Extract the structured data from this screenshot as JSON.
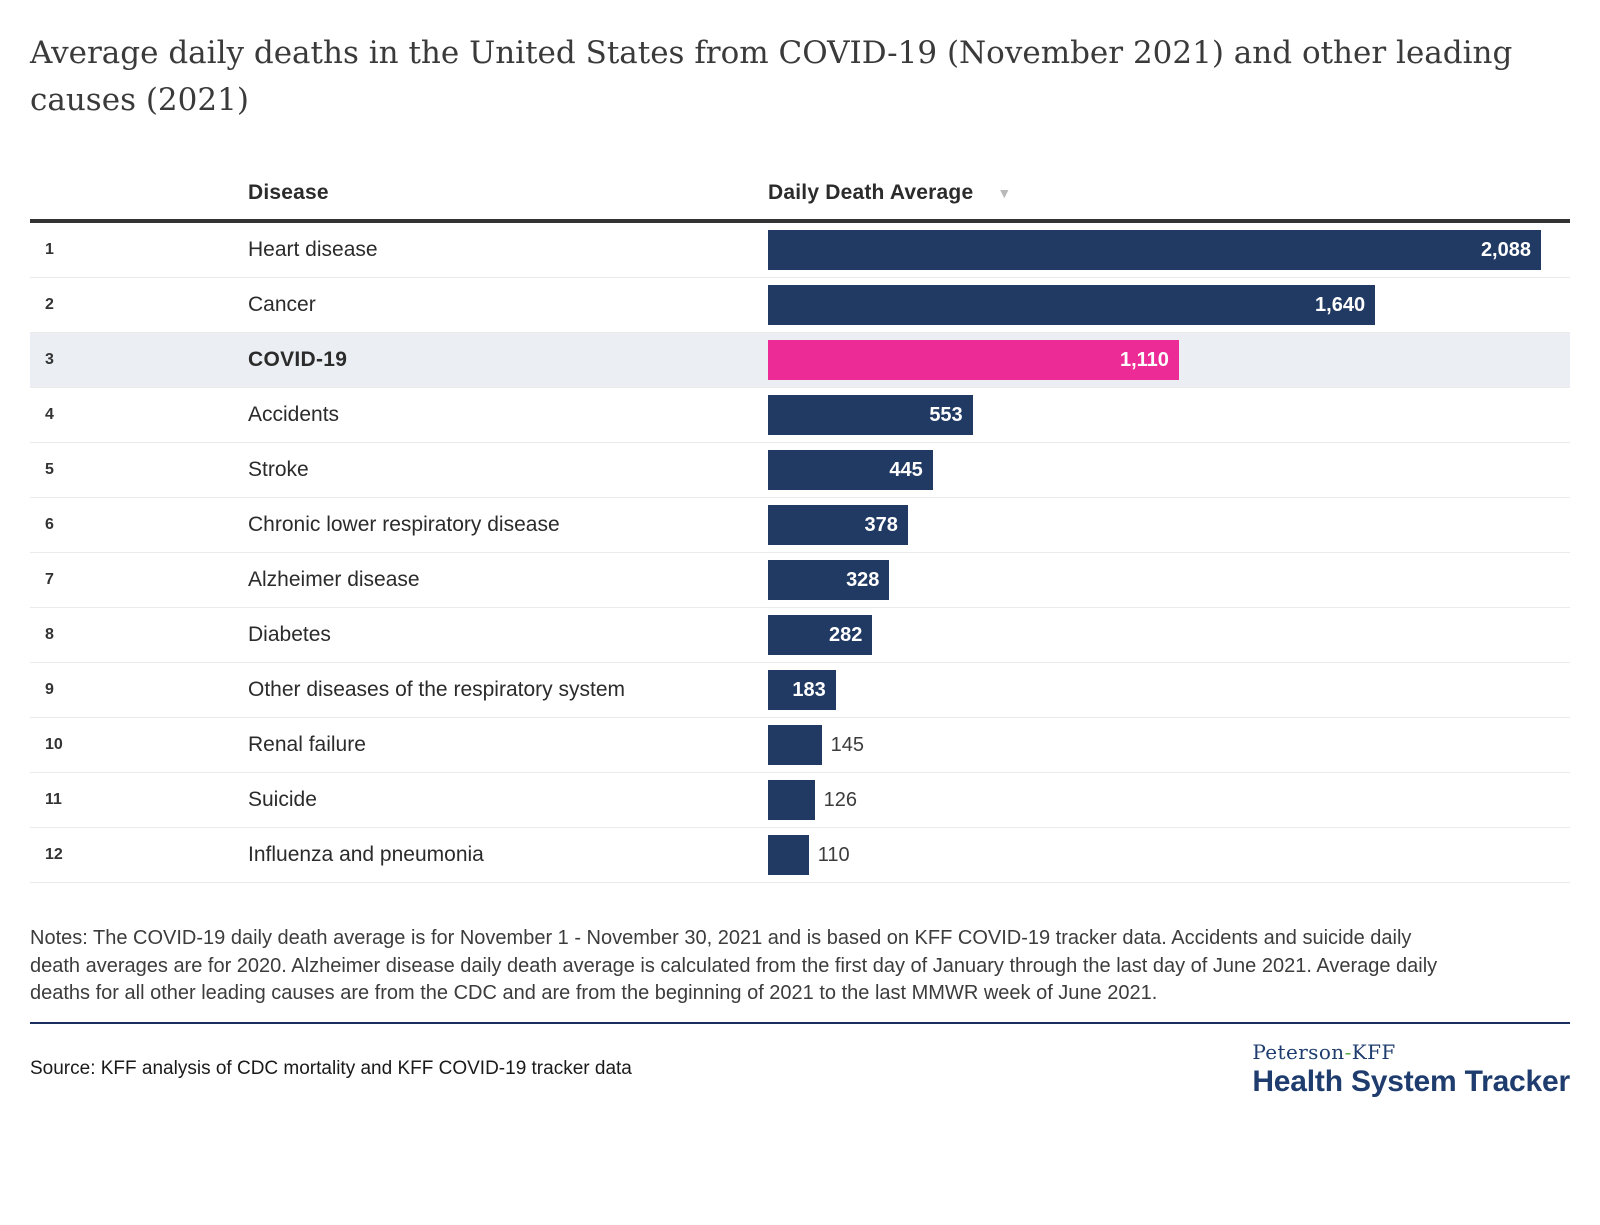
{
  "title": "Average daily deaths in the United States from COVID-19 (November 2021) and other leading causes (2021)",
  "table": {
    "columns": {
      "disease": "Disease",
      "value": "Daily Death Average"
    },
    "sort_icon": "▼"
  },
  "chart_data": {
    "type": "bar",
    "orientation": "horizontal",
    "title": "Average daily deaths in the United States from COVID-19 (November 2021) and other leading causes (2021)",
    "categories": [
      "Heart disease",
      "Cancer",
      "COVID-19",
      "Accidents",
      "Stroke",
      "Chronic lower respiratory disease",
      "Alzheimer disease",
      "Diabetes",
      "Other diseases of the respiratory system",
      "Renal failure",
      "Suicide",
      "Influenza and pneumonia"
    ],
    "values": [
      2088,
      1640,
      1110,
      553,
      445,
      378,
      328,
      282,
      183,
      145,
      126,
      110
    ],
    "value_labels": [
      "2,088",
      "1,640",
      "1,110",
      "553",
      "445",
      "378",
      "328",
      "282",
      "183",
      "145",
      "126",
      "110"
    ],
    "ranks": [
      1,
      2,
      3,
      4,
      5,
      6,
      7,
      8,
      9,
      10,
      11,
      12
    ],
    "highlight_category": "COVID-19",
    "xlabel": "Daily Death Average",
    "ylabel": "Disease",
    "xlim": [
      0,
      2088
    ],
    "grid": false,
    "legend": false,
    "bar_color": "#213a63",
    "highlight_color": "#ed2b96"
  },
  "rows": [
    {
      "rank": "1",
      "disease": "Heart disease",
      "value": 2088,
      "value_label": "2,088",
      "label_position": "inside",
      "highlighted": false
    },
    {
      "rank": "2",
      "disease": "Cancer",
      "value": 1640,
      "value_label": "1,640",
      "label_position": "inside",
      "highlighted": false
    },
    {
      "rank": "3",
      "disease": "COVID-19",
      "value": 1110,
      "value_label": "1,110",
      "label_position": "inside",
      "highlighted": true
    },
    {
      "rank": "4",
      "disease": "Accidents",
      "value": 553,
      "value_label": "553",
      "label_position": "inside",
      "highlighted": false
    },
    {
      "rank": "5",
      "disease": "Stroke",
      "value": 445,
      "value_label": "445",
      "label_position": "inside",
      "highlighted": false
    },
    {
      "rank": "6",
      "disease": "Chronic lower respiratory disease",
      "value": 378,
      "value_label": "378",
      "label_position": "inside",
      "highlighted": false
    },
    {
      "rank": "7",
      "disease": "Alzheimer disease",
      "value": 328,
      "value_label": "328",
      "label_position": "inside",
      "highlighted": false
    },
    {
      "rank": "8",
      "disease": "Diabetes",
      "value": 282,
      "value_label": "282",
      "label_position": "inside",
      "highlighted": false
    },
    {
      "rank": "9",
      "disease": "Other diseases of the respiratory system",
      "value": 183,
      "value_label": "183",
      "label_position": "inside",
      "highlighted": false
    },
    {
      "rank": "10",
      "disease": "Renal failure",
      "value": 145,
      "value_label": "145",
      "label_position": "outside",
      "highlighted": false
    },
    {
      "rank": "11",
      "disease": "Suicide",
      "value": 126,
      "value_label": "126",
      "label_position": "outside",
      "highlighted": false
    },
    {
      "rank": "12",
      "disease": "Influenza and pneumonia",
      "value": 110,
      "value_label": "110",
      "label_position": "outside",
      "highlighted": false
    }
  ],
  "notes": "Notes: The COVID-19 daily death average is for November 1 - November 30, 2021 and is based on KFF COVID-19 tracker data. Accidents and suicide daily death averages are for 2020. Alzheimer disease daily death average is calculated from the first day of January through the last day of June 2021. Average daily deaths for all other leading causes are from the CDC and are from the beginning of 2021 to the last MMWR week of June 2021.",
  "source": "Source: KFF analysis of CDC mortality and KFF COVID-19 tracker data",
  "logo": {
    "top_left": "Peterson",
    "hyphen": "-",
    "top_right": "KFF",
    "bottom": "Health System Tracker"
  },
  "colors": {
    "bar_navy": "#213a63",
    "bar_pink": "#ed2b96",
    "row_highlight_bg": "#ebeff3",
    "header_rule": "#333333",
    "row_divider": "#ebebeb",
    "sort_icon_gray": "#b9b9b9",
    "value_outside": "#3c3c3c",
    "footer_rule_navy": "#1b2f5e",
    "logo_navy": "#1e3c6d",
    "logo_hyphen_green": "#56a944"
  }
}
